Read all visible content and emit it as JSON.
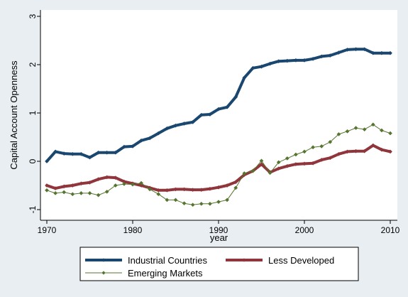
{
  "chart_data": {
    "type": "line",
    "xlabel": "year",
    "ylabel": "Capital Account Openness",
    "xlim": [
      1970,
      2010
    ],
    "ylim": [
      -1,
      3
    ],
    "xticks": [
      1970,
      1980,
      1990,
      2000,
      2010
    ],
    "yticks": [
      -1,
      0,
      1,
      2,
      3
    ],
    "grid": false,
    "legend_position": "bottom",
    "x": [
      1970,
      1971,
      1972,
      1973,
      1974,
      1975,
      1976,
      1977,
      1978,
      1979,
      1980,
      1981,
      1982,
      1983,
      1984,
      1985,
      1986,
      1987,
      1988,
      1989,
      1990,
      1991,
      1992,
      1993,
      1994,
      1995,
      1996,
      1997,
      1998,
      1999,
      2000,
      2001,
      2002,
      2003,
      2004,
      2005,
      2006,
      2007,
      2008,
      2009,
      2010
    ],
    "series": [
      {
        "name": "Industrial Countries",
        "color": "#1a476f",
        "values": [
          0.0,
          0.2,
          0.16,
          0.15,
          0.15,
          0.08,
          0.18,
          0.18,
          0.18,
          0.3,
          0.31,
          0.43,
          0.48,
          0.58,
          0.68,
          0.74,
          0.78,
          0.81,
          0.96,
          0.97,
          1.08,
          1.12,
          1.33,
          1.73,
          1.93,
          1.96,
          2.02,
          2.07,
          2.08,
          2.09,
          2.09,
          2.12,
          2.17,
          2.19,
          2.25,
          2.31,
          2.32,
          2.32,
          2.24,
          2.24,
          2.24
        ]
      },
      {
        "name": "Less Developed",
        "color": "#90353b",
        "values": [
          -0.5,
          -0.56,
          -0.52,
          -0.5,
          -0.46,
          -0.44,
          -0.37,
          -0.33,
          -0.34,
          -0.42,
          -0.46,
          -0.5,
          -0.55,
          -0.6,
          -0.6,
          -0.58,
          -0.58,
          -0.59,
          -0.59,
          -0.57,
          -0.54,
          -0.5,
          -0.43,
          -0.28,
          -0.2,
          -0.06,
          -0.23,
          -0.15,
          -0.1,
          -0.06,
          -0.05,
          -0.04,
          0.03,
          0.07,
          0.15,
          0.2,
          0.21,
          0.21,
          0.33,
          0.24,
          0.2
        ]
      },
      {
        "name": "Emerging Markets",
        "color": "#55752f",
        "values": [
          -0.6,
          -0.66,
          -0.64,
          -0.68,
          -0.66,
          -0.66,
          -0.7,
          -0.63,
          -0.5,
          -0.47,
          -0.48,
          -0.45,
          -0.58,
          -0.68,
          -0.8,
          -0.8,
          -0.87,
          -0.9,
          -0.88,
          -0.88,
          -0.84,
          -0.8,
          -0.55,
          -0.25,
          -0.2,
          0.01,
          -0.24,
          -0.02,
          0.06,
          0.14,
          0.2,
          0.29,
          0.31,
          0.4,
          0.56,
          0.62,
          0.69,
          0.66,
          0.76,
          0.64,
          0.58
        ]
      }
    ]
  }
}
